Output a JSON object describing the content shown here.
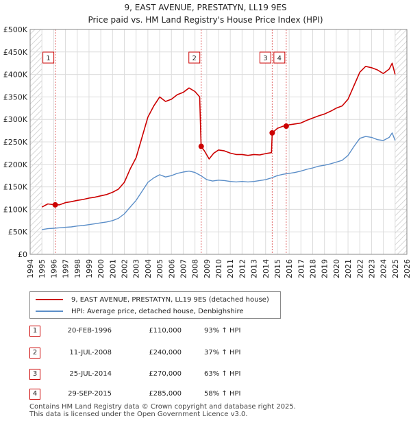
{
  "title_line1": "9, EAST AVENUE, PRESTATYN, LL19 9ES",
  "title_line2": "Price paid vs. HM Land Registry's House Price Index (HPI)",
  "chart_data": {
    "type": "line",
    "x_range": [
      1994,
      2026
    ],
    "ylim": [
      0,
      500000
    ],
    "grid": true,
    "y_ticks": [
      0,
      50000,
      100000,
      150000,
      200000,
      250000,
      300000,
      350000,
      400000,
      450000,
      500000
    ],
    "y_tick_labels": [
      "£0",
      "£50K",
      "£100K",
      "£150K",
      "£200K",
      "£250K",
      "£300K",
      "£350K",
      "£400K",
      "£450K",
      "£500K"
    ],
    "x_ticks": [
      1994,
      1995,
      1996,
      1997,
      1998,
      1999,
      2000,
      2001,
      2002,
      2003,
      2004,
      2005,
      2006,
      2007,
      2008,
      2009,
      2010,
      2011,
      2012,
      2013,
      2014,
      2015,
      2016,
      2017,
      2018,
      2019,
      2020,
      2021,
      2022,
      2023,
      2024,
      2025,
      2026
    ],
    "x_tick_labels": [
      "1994",
      "1995",
      "1996",
      "1997",
      "1998",
      "1999",
      "2000",
      "2001",
      "2002",
      "2003",
      "2004",
      "2005",
      "2006",
      "2007",
      "2008",
      "2009",
      "2010",
      "2011",
      "2012",
      "2013",
      "2014",
      "2015",
      "2016",
      "2017",
      "2018",
      "2019",
      "2020",
      "2021",
      "2022",
      "2023",
      "2024",
      "2025",
      "2026"
    ],
    "hatch_regions": [
      [
        1994,
        1995
      ],
      [
        2025,
        2026
      ]
    ],
    "series": [
      {
        "name": "9, EAST AVENUE, PRESTATYN, LL19 9ES (detached house)",
        "color": "#cc0000",
        "x": [
          1995.0,
          1995.5,
          1996.13,
          1996.5,
          1997.0,
          1997.5,
          1998.0,
          1998.5,
          1999.0,
          1999.5,
          2000.0,
          2000.5,
          2001.0,
          2001.5,
          2002.0,
          2002.5,
          2003.0,
          2003.5,
          2004.0,
          2004.5,
          2005.0,
          2005.5,
          2006.0,
          2006.5,
          2007.0,
          2007.5,
          2008.0,
          2008.4,
          2008.52,
          2008.8,
          2009.2,
          2009.6,
          2010.0,
          2010.5,
          2011.0,
          2011.5,
          2012.0,
          2012.5,
          2013.0,
          2013.5,
          2014.0,
          2014.5,
          2014.56,
          2015.0,
          2015.5,
          2015.75,
          2016.0,
          2016.5,
          2017.0,
          2017.5,
          2018.0,
          2018.5,
          2019.0,
          2019.5,
          2020.0,
          2020.5,
          2021.0,
          2021.5,
          2022.0,
          2022.5,
          2023.0,
          2023.5,
          2024.0,
          2024.5,
          2024.75,
          2025.0
        ],
        "values": [
          105000,
          112000,
          110000,
          110000,
          115000,
          117000,
          120000,
          122000,
          125000,
          127000,
          130000,
          133000,
          138000,
          145000,
          160000,
          190000,
          215000,
          260000,
          305000,
          330000,
          350000,
          340000,
          345000,
          355000,
          360000,
          370000,
          362000,
          350000,
          240000,
          230000,
          212000,
          225000,
          232000,
          230000,
          225000,
          222000,
          222000,
          220000,
          222000,
          221000,
          224000,
          226000,
          270000,
          280000,
          285000,
          285000,
          288000,
          290000,
          292000,
          298000,
          303000,
          308000,
          312000,
          318000,
          325000,
          330000,
          345000,
          375000,
          405000,
          418000,
          415000,
          410000,
          402000,
          412000,
          425000,
          400000
        ]
      },
      {
        "name": "HPI: Average price, detached house, Denbighshire",
        "color": "#5b8ec8",
        "x": [
          1995.0,
          1995.5,
          1996.0,
          1996.5,
          1997.0,
          1997.5,
          1998.0,
          1998.5,
          1999.0,
          1999.5,
          2000.0,
          2000.5,
          2001.0,
          2001.5,
          2002.0,
          2002.5,
          2003.0,
          2003.5,
          2004.0,
          2004.5,
          2005.0,
          2005.5,
          2006.0,
          2006.5,
          2007.0,
          2007.5,
          2008.0,
          2008.5,
          2009.0,
          2009.5,
          2010.0,
          2010.5,
          2011.0,
          2011.5,
          2012.0,
          2012.5,
          2013.0,
          2013.5,
          2014.0,
          2014.5,
          2015.0,
          2015.5,
          2016.0,
          2016.5,
          2017.0,
          2017.5,
          2018.0,
          2018.5,
          2019.0,
          2019.5,
          2020.0,
          2020.5,
          2021.0,
          2021.5,
          2022.0,
          2022.5,
          2023.0,
          2023.5,
          2024.0,
          2024.5,
          2024.75,
          2025.0
        ],
        "values": [
          55000,
          57000,
          58000,
          59000,
          60000,
          61000,
          63000,
          64000,
          66000,
          68000,
          70000,
          72000,
          75000,
          80000,
          90000,
          105000,
          120000,
          140000,
          160000,
          170000,
          177000,
          172000,
          175000,
          180000,
          183000,
          185000,
          182000,
          175000,
          166000,
          163000,
          165000,
          164000,
          162000,
          161000,
          162000,
          161000,
          162000,
          164000,
          166000,
          170000,
          175000,
          178000,
          180000,
          182000,
          185000,
          189000,
          192000,
          196000,
          198000,
          201000,
          205000,
          209000,
          220000,
          240000,
          258000,
          262000,
          260000,
          255000,
          253000,
          260000,
          270000,
          253000
        ]
      }
    ],
    "markers": [
      {
        "label": "1",
        "x": 1996.13,
        "value": 110000
      },
      {
        "label": "2",
        "x": 2008.53,
        "value": 240000
      },
      {
        "label": "3",
        "x": 2014.56,
        "value": 270000
      },
      {
        "label": "4",
        "x": 2015.75,
        "value": 285000
      }
    ]
  },
  "legend": {
    "property_label": "9, EAST AVENUE, PRESTATYN, LL19 9ES (detached house)",
    "hpi_label": "HPI: Average price, detached house, Denbighshire",
    "property_color": "#cc0000",
    "hpi_color": "#5b8ec8"
  },
  "transactions": [
    {
      "num": "1",
      "date": "20-FEB-1996",
      "price": "£110,000",
      "hpi": "93% ↑ HPI"
    },
    {
      "num": "2",
      "date": "11-JUL-2008",
      "price": "£240,000",
      "hpi": "37% ↑ HPI"
    },
    {
      "num": "3",
      "date": "25-JUL-2014",
      "price": "£270,000",
      "hpi": "63% ↑ HPI"
    },
    {
      "num": "4",
      "date": "29-SEP-2015",
      "price": "£285,000",
      "hpi": "58% ↑ HPI"
    }
  ],
  "footer": {
    "line1": "Contains HM Land Registry data © Crown copyright and database right 2025.",
    "line2": "This data is licensed under the Open Government Licence v3.0."
  }
}
